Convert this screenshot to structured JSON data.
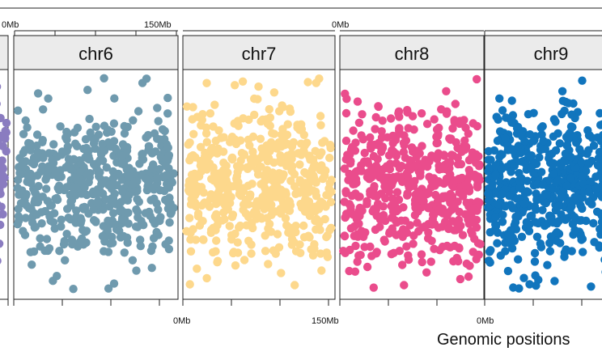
{
  "chart_data": {
    "type": "scatter",
    "xlabel": "Genomic positions",
    "ylabel": "",
    "grid": false,
    "top_tick_labels": [
      "0Mb",
      "150Mb",
      "0Mb"
    ],
    "bottom_tick_labels": [
      "0Mb",
      "150Mb",
      "0Mb"
    ],
    "panels": [
      {
        "name": "",
        "color": "#8a7cc0",
        "xlim": [
          0,
          150
        ],
        "partial": "left"
      },
      {
        "name": "chr6",
        "color": "#6f9aae",
        "xlim": [
          0,
          171
        ]
      },
      {
        "name": "chr7",
        "color": "#fdd88c",
        "xlim": [
          0,
          159
        ]
      },
      {
        "name": "chr8",
        "color": "#ea4c8c",
        "xlim": [
          0,
          145
        ]
      },
      {
        "name": "chr9",
        "color": "#1175bd",
        "xlim": [
          0,
          138
        ],
        "partial": "right"
      }
    ]
  }
}
